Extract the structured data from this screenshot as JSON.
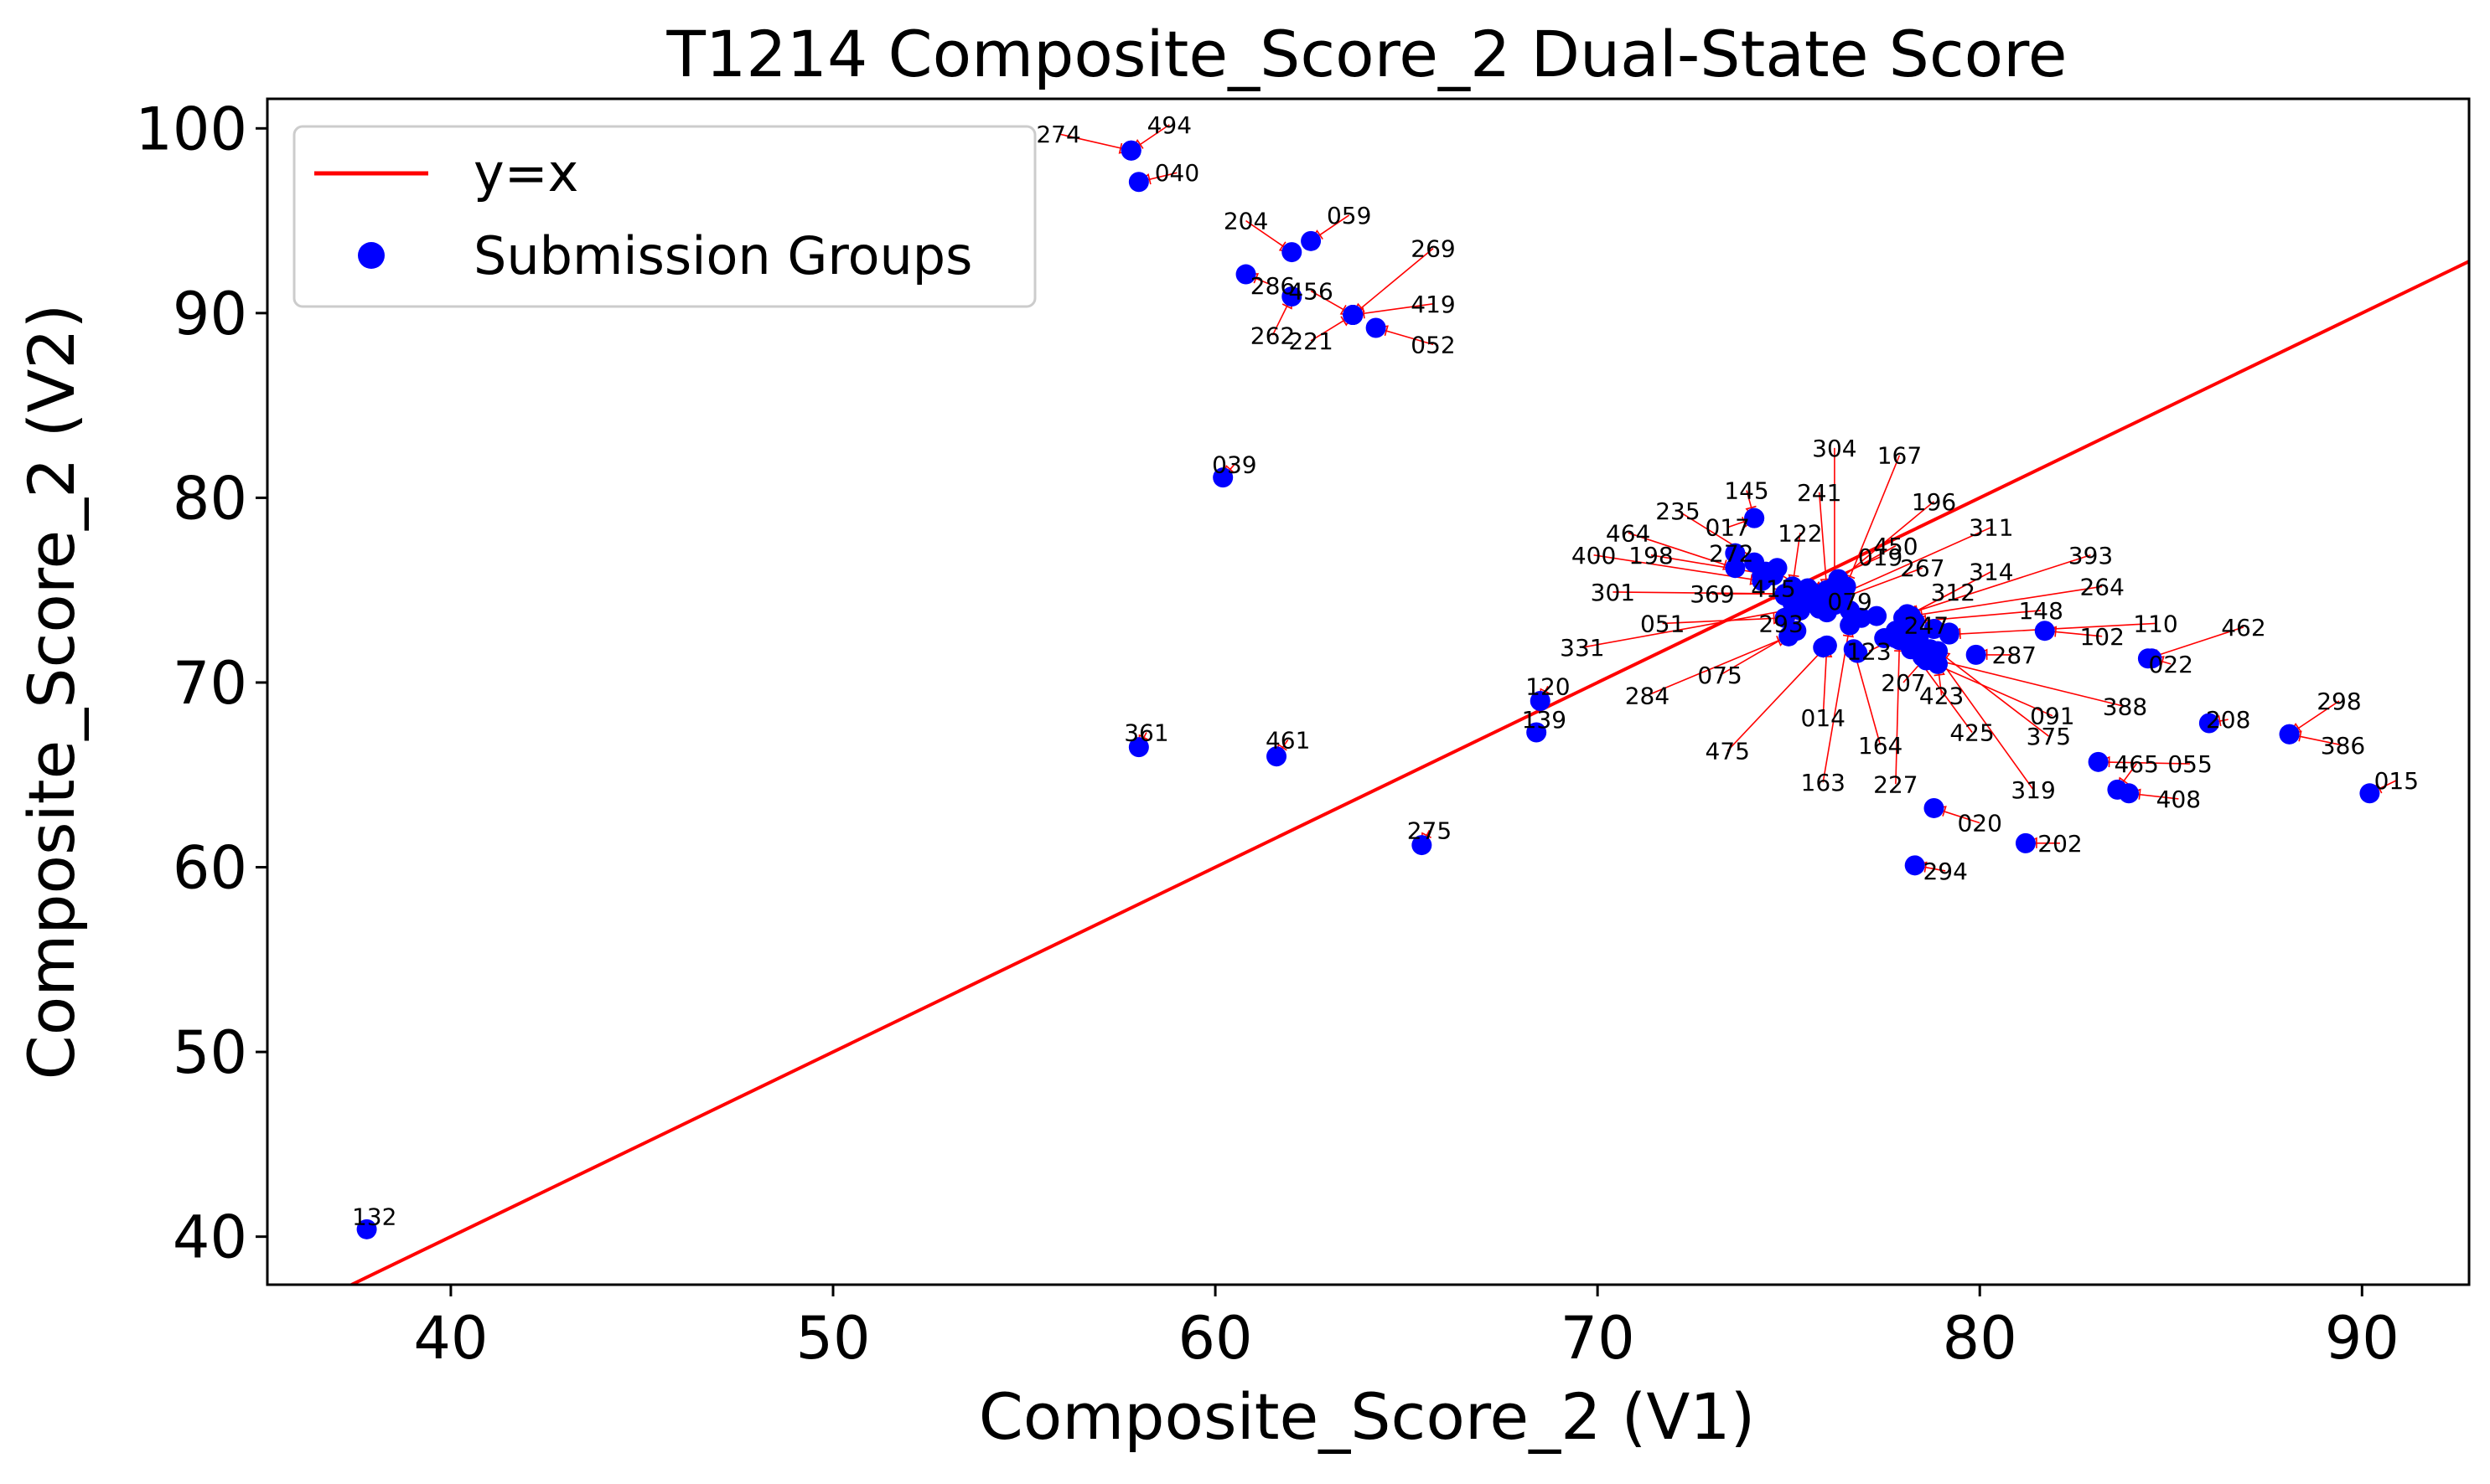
{
  "chart_data": {
    "type": "scatter",
    "title": "T1214 Composite_Score_2 Dual-State Score",
    "xlabel": "Composite_Score_2 (V1)",
    "ylabel": "Composite_Score_2 (V2)",
    "xlim": [
      35.2,
      92.8
    ],
    "ylim": [
      37.4,
      101.6
    ],
    "xticks": [
      40,
      50,
      60,
      70,
      80,
      90
    ],
    "yticks": [
      40,
      50,
      60,
      70,
      80,
      90,
      100
    ],
    "grid": false,
    "legend_position": "upper-left",
    "colors": {
      "reference_line": "#ff0000",
      "points": "#0000ff",
      "annotation_arrows": "#ff0000",
      "axes": "#000000",
      "background": "#ffffff"
    },
    "reference_line": {
      "name": "y=x"
    },
    "series": [
      {
        "name": "Submission Groups",
        "points": [
          {
            "id": "274",
            "x": 57.8,
            "y": 98.8,
            "lx": 55.9,
            "ly": 99.7
          },
          {
            "id": "494",
            "x": 57.8,
            "y": 98.8,
            "lx": 58.8,
            "ly": 100.2
          },
          {
            "id": "040",
            "x": 58.0,
            "y": 97.1,
            "lx": 59.0,
            "ly": 97.6
          },
          {
            "id": "204",
            "x": 62.0,
            "y": 93.3,
            "lx": 60.8,
            "ly": 95.0
          },
          {
            "id": "059",
            "x": 62.5,
            "y": 93.9,
            "lx": 63.5,
            "ly": 95.3
          },
          {
            "id": "286",
            "x": 60.8,
            "y": 92.1,
            "lx": 61.5,
            "ly": 91.5
          },
          {
            "id": "262",
            "x": 62.0,
            "y": 90.9,
            "lx": 61.5,
            "ly": 88.8
          },
          {
            "id": "456",
            "x": 63.6,
            "y": 89.9,
            "lx": 62.5,
            "ly": 91.2
          },
          {
            "id": "269",
            "x": 63.6,
            "y": 89.9,
            "lx": 65.7,
            "ly": 93.5
          },
          {
            "id": "419",
            "x": 63.6,
            "y": 89.9,
            "lx": 65.7,
            "ly": 90.5
          },
          {
            "id": "221",
            "x": 63.6,
            "y": 89.9,
            "lx": 62.5,
            "ly": 88.5
          },
          {
            "id": "052",
            "x": 64.2,
            "y": 89.2,
            "lx": 65.7,
            "ly": 88.3
          },
          {
            "id": "039",
            "x": 60.2,
            "y": 81.1,
            "lx": 60.5,
            "ly": 81.8
          },
          {
            "id": "361",
            "x": 58.0,
            "y": 66.5,
            "lx": 58.2,
            "ly": 67.3
          },
          {
            "id": "461",
            "x": 61.6,
            "y": 66.0,
            "lx": 61.9,
            "ly": 66.9
          },
          {
            "id": "275",
            "x": 65.4,
            "y": 61.2,
            "lx": 65.6,
            "ly": 62.0
          },
          {
            "id": "120",
            "x": 68.5,
            "y": 69.0,
            "lx": 68.7,
            "ly": 69.8
          },
          {
            "id": "139",
            "x": 68.4,
            "y": 67.3,
            "lx": 68.6,
            "ly": 68.0
          },
          {
            "id": "132",
            "x": 37.8,
            "y": 40.4,
            "lx": 38.0,
            "ly": 41.1
          },
          {
            "id": "304",
            "x": 76.2,
            "y": 75.2,
            "lx": 76.2,
            "ly": 82.7
          },
          {
            "id": "167",
            "x": 76.5,
            "y": 75.2,
            "lx": 77.9,
            "ly": 82.3
          },
          {
            "id": "235",
            "x": 75.6,
            "y": 74.8,
            "lx": 72.1,
            "ly": 79.3
          },
          {
            "id": "145",
            "x": 74.1,
            "y": 78.9,
            "lx": 73.9,
            "ly": 80.4
          },
          {
            "id": "241",
            "x": 76.0,
            "y": 75.0,
            "lx": 75.8,
            "ly": 80.3
          },
          {
            "id": "196",
            "x": 76.0,
            "y": 75.0,
            "lx": 78.8,
            "ly": 79.8
          },
          {
            "id": "017",
            "x": 74.1,
            "y": 78.9,
            "lx": 73.4,
            "ly": 78.4
          },
          {
            "id": "311",
            "x": 76.4,
            "y": 74.8,
            "lx": 80.3,
            "ly": 78.4
          },
          {
            "id": "464",
            "x": 73.6,
            "y": 76.2,
            "lx": 70.8,
            "ly": 78.1
          },
          {
            "id": "122",
            "x": 75.1,
            "y": 75.2,
            "lx": 75.3,
            "ly": 78.1
          },
          {
            "id": "450",
            "x": 75.6,
            "y": 74.9,
            "lx": 77.8,
            "ly": 77.4
          },
          {
            "id": "019",
            "x": 75.2,
            "y": 74.8,
            "lx": 77.4,
            "ly": 76.8
          },
          {
            "id": "272",
            "x": 74.4,
            "y": 76.0,
            "lx": 73.5,
            "ly": 77.0
          },
          {
            "id": "198",
            "x": 74.6,
            "y": 75.8,
            "lx": 71.4,
            "ly": 76.9
          },
          {
            "id": "400",
            "x": 74.3,
            "y": 75.5,
            "lx": 69.9,
            "ly": 76.9
          },
          {
            "id": "267",
            "x": 76.3,
            "y": 74.5,
            "lx": 78.5,
            "ly": 76.2
          },
          {
            "id": "314",
            "x": 78.1,
            "y": 73.6,
            "lx": 80.3,
            "ly": 76.0
          },
          {
            "id": "393",
            "x": 78.1,
            "y": 73.7,
            "lx": 82.9,
            "ly": 76.9
          },
          {
            "id": "312",
            "x": 78.0,
            "y": 73.5,
            "lx": 79.3,
            "ly": 74.9
          },
          {
            "id": "264",
            "x": 78.2,
            "y": 73.6,
            "lx": 83.2,
            "ly": 75.2
          },
          {
            "id": "369",
            "x": 74.9,
            "y": 74.8,
            "lx": 73.0,
            "ly": 74.8
          },
          {
            "id": "301",
            "x": 75.0,
            "y": 74.8,
            "lx": 70.4,
            "ly": 74.9
          },
          {
            "id": "415",
            "x": 75.4,
            "y": 74.6,
            "lx": 74.6,
            "ly": 75.1
          },
          {
            "id": "079",
            "x": 76.2,
            "y": 74.2,
            "lx": 76.6,
            "ly": 74.4
          },
          {
            "id": "148",
            "x": 78.3,
            "y": 73.3,
            "lx": 81.6,
            "ly": 73.9
          },
          {
            "id": "110",
            "x": 79.2,
            "y": 72.6,
            "lx": 84.6,
            "ly": 73.2
          },
          {
            "id": "462",
            "x": 84.4,
            "y": 71.3,
            "lx": 86.9,
            "ly": 73.0
          },
          {
            "id": "293",
            "x": 75.3,
            "y": 74.0,
            "lx": 74.8,
            "ly": 73.2
          },
          {
            "id": "051",
            "x": 74.9,
            "y": 73.5,
            "lx": 71.7,
            "ly": 73.2
          },
          {
            "id": "331",
            "x": 75.2,
            "y": 74.0,
            "lx": 69.6,
            "ly": 71.9
          },
          {
            "id": "247",
            "x": 78.8,
            "y": 72.9,
            "lx": 78.6,
            "ly": 73.1
          },
          {
            "id": "102",
            "x": 81.7,
            "y": 72.8,
            "lx": 83.2,
            "ly": 72.5
          },
          {
            "id": "287",
            "x": 79.9,
            "y": 71.5,
            "lx": 80.9,
            "ly": 71.5
          },
          {
            "id": "022",
            "x": 84.5,
            "y": 71.3,
            "lx": 85.0,
            "ly": 71.0
          },
          {
            "id": "123",
            "x": 77.8,
            "y": 72.4,
            "lx": 77.1,
            "ly": 71.7
          },
          {
            "id": "075",
            "x": 75.2,
            "y": 72.8,
            "lx": 73.2,
            "ly": 70.4
          },
          {
            "id": "207",
            "x": 78.6,
            "y": 71.4,
            "lx": 78.0,
            "ly": 70.0
          },
          {
            "id": "284",
            "x": 75.0,
            "y": 72.5,
            "lx": 71.3,
            "ly": 69.3
          },
          {
            "id": "423",
            "x": 78.9,
            "y": 71.0,
            "lx": 79.0,
            "ly": 69.3
          },
          {
            "id": "388",
            "x": 78.5,
            "y": 71.4,
            "lx": 83.8,
            "ly": 68.7
          },
          {
            "id": "091",
            "x": 78.6,
            "y": 71.2,
            "lx": 81.9,
            "ly": 68.2
          },
          {
            "id": "014",
            "x": 76.0,
            "y": 72.0,
            "lx": 75.9,
            "ly": 68.1
          },
          {
            "id": "208",
            "x": 86.0,
            "y": 67.8,
            "lx": 86.5,
            "ly": 68.0
          },
          {
            "id": "298",
            "x": 88.1,
            "y": 67.2,
            "lx": 89.4,
            "ly": 69.0
          },
          {
            "id": "425",
            "x": 78.2,
            "y": 71.8,
            "lx": 79.8,
            "ly": 67.3
          },
          {
            "id": "375",
            "x": 78.9,
            "y": 71.7,
            "lx": 81.8,
            "ly": 67.1
          },
          {
            "id": "386",
            "x": 88.1,
            "y": 67.2,
            "lx": 89.5,
            "ly": 66.6
          },
          {
            "id": "164",
            "x": 76.7,
            "y": 71.8,
            "lx": 77.4,
            "ly": 66.6
          },
          {
            "id": "475",
            "x": 76.0,
            "y": 72.0,
            "lx": 73.4,
            "ly": 66.3
          },
          {
            "id": "055",
            "x": 83.1,
            "y": 65.7,
            "lx": 85.5,
            "ly": 65.6
          },
          {
            "id": "465",
            "x": 83.6,
            "y": 64.2,
            "lx": 84.1,
            "ly": 65.6
          },
          {
            "id": "227",
            "x": 77.9,
            "y": 72.3,
            "lx": 77.8,
            "ly": 64.5
          },
          {
            "id": "163",
            "x": 76.6,
            "y": 73.1,
            "lx": 75.9,
            "ly": 64.6
          },
          {
            "id": "319",
            "x": 78.8,
            "y": 71.7,
            "lx": 81.4,
            "ly": 64.2
          },
          {
            "id": "408",
            "x": 83.9,
            "y": 64.0,
            "lx": 85.2,
            "ly": 63.7
          },
          {
            "id": "015",
            "x": 90.2,
            "y": 64.0,
            "lx": 90.9,
            "ly": 64.7
          },
          {
            "id": "020",
            "x": 78.8,
            "y": 63.2,
            "lx": 80.0,
            "ly": 62.4
          },
          {
            "id": "202",
            "x": 81.2,
            "y": 61.3,
            "lx": 82.1,
            "ly": 61.3
          },
          {
            "id": "294",
            "x": 78.3,
            "y": 60.1,
            "lx": 79.1,
            "ly": 59.8
          }
        ],
        "extra_points": [
          [
            73.6,
            77.0
          ],
          [
            74.1,
            76.5
          ],
          [
            74.7,
            76.2
          ],
          [
            74.3,
            75.8
          ],
          [
            75.5,
            75.1
          ],
          [
            76.3,
            75.6
          ],
          [
            75.9,
            74.8
          ],
          [
            75.6,
            74.5
          ],
          [
            75.1,
            74.3
          ],
          [
            75.8,
            74.0
          ],
          [
            76.3,
            74.3
          ],
          [
            76.6,
            73.9
          ],
          [
            75.3,
            73.9
          ],
          [
            76.9,
            73.5
          ],
          [
            77.3,
            73.6
          ],
          [
            77.8,
            72.8
          ],
          [
            78.0,
            72.6
          ],
          [
            78.4,
            72.4
          ],
          [
            78.7,
            71.8
          ],
          [
            77.5,
            72.4
          ],
          [
            76.8,
            71.6
          ],
          [
            79.2,
            72.7
          ],
          [
            78.2,
            73.1
          ],
          [
            75.9,
            71.9
          ],
          [
            74.9,
            74.7
          ],
          [
            76.0,
            73.8
          ]
        ]
      }
    ]
  }
}
